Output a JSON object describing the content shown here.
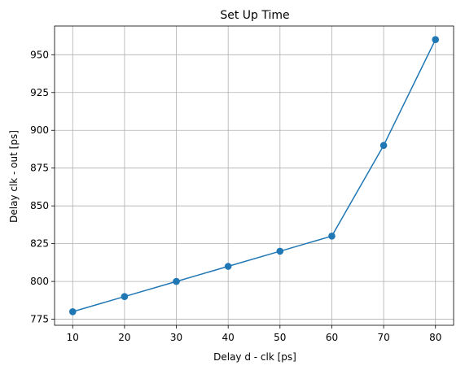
{
  "chart_data": {
    "type": "line",
    "title": "Set Up Time",
    "xlabel": "Delay d - clk [ps]",
    "ylabel": "Delay clk - out [ps]",
    "x": [
      10,
      20,
      30,
      40,
      50,
      60,
      70,
      80
    ],
    "series": [
      {
        "values": [
          780,
          790,
          800,
          810,
          820,
          830,
          890,
          960
        ],
        "color": "#1f77b4",
        "marker": "circle"
      }
    ],
    "xlim": [
      6.5,
      83.5
    ],
    "ylim": [
      771,
      969
    ],
    "xticks": [
      10,
      20,
      30,
      40,
      50,
      60,
      70,
      80
    ],
    "yticks": [
      775,
      800,
      825,
      850,
      875,
      900,
      925,
      950
    ],
    "grid": true,
    "legend": false,
    "grid_color": "#b0b0b0",
    "axes_color": "#000000"
  }
}
